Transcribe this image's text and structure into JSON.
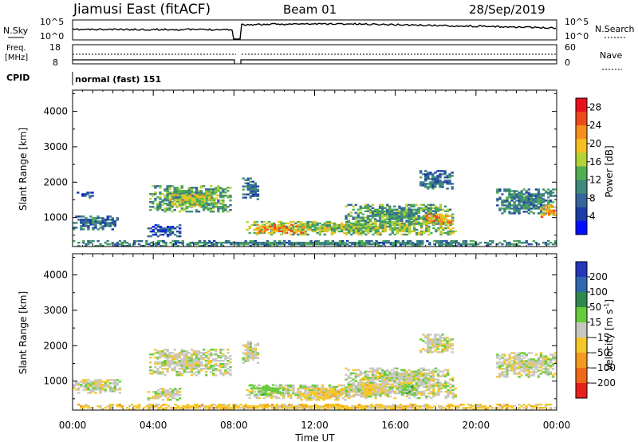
{
  "header": {
    "site": "Jiamusi East (fitACF)",
    "beam": "Beam 01",
    "date": "28/Sep/2019"
  },
  "info_panels": {
    "nsky_label": "N.Sky",
    "nsearch_label": "N.Search",
    "nsky_ticks": [
      "10^5",
      "10^0"
    ],
    "nsearch_ticks": [
      "10^5",
      "10^0"
    ],
    "freq_label_1": "Freq.",
    "freq_label_2": "[MHz]",
    "freq_ticks": [
      "18",
      "8"
    ],
    "nave_label": "Nave",
    "nave_ticks": [
      "60",
      "0"
    ],
    "cpid_label": "CPID",
    "cpid_value": "normal (fast) 151"
  },
  "chart_data": [
    {
      "type": "heatmap",
      "name": "power",
      "ylabel": "Slant Range [km]",
      "xlabel": "",
      "x_ticks": [
        "00:00",
        "04:00",
        "08:00",
        "12:00",
        "16:00",
        "20:00",
        "00:00"
      ],
      "ylim": [
        180,
        4600
      ],
      "y_ticks": [
        1000,
        2000,
        3000,
        4000
      ],
      "colorbar": {
        "label": "Power [dB]",
        "ticks": [
          4,
          8,
          12,
          16,
          20,
          24,
          28
        ],
        "range": [
          0,
          30
        ],
        "colors": [
          "#0010ff",
          "#1c3ca8",
          "#35659a",
          "#3f8a7a",
          "#4fae52",
          "#b4d138",
          "#f4c020",
          "#f78f1c",
          "#ef4a1a",
          "#e8101a"
        ]
      },
      "echo_regions": [
        {
          "t0": 0.0,
          "t1": 2.4,
          "r0": 650,
          "r1": 1050,
          "value": 8
        },
        {
          "t0": 0.2,
          "t1": 1.0,
          "r0": 1550,
          "r1": 1700,
          "value": 6
        },
        {
          "t0": 3.8,
          "t1": 7.8,
          "r0": 1150,
          "r1": 1900,
          "value": 12
        },
        {
          "t0": 4.8,
          "t1": 7.2,
          "r0": 1300,
          "r1": 1700,
          "value": 17
        },
        {
          "t0": 3.7,
          "t1": 5.3,
          "r0": 450,
          "r1": 800,
          "value": 6
        },
        {
          "t0": 8.4,
          "t1": 9.2,
          "r0": 1500,
          "r1": 2100,
          "value": 8
        },
        {
          "t0": 8.6,
          "t1": 19.0,
          "r0": 500,
          "r1": 900,
          "value": 15
        },
        {
          "t0": 9.0,
          "t1": 11.5,
          "r0": 550,
          "r1": 800,
          "value": 22
        },
        {
          "t0": 13.5,
          "t1": 18.8,
          "r0": 800,
          "r1": 1350,
          "value": 12
        },
        {
          "t0": 17.5,
          "t1": 18.8,
          "r0": 800,
          "r1": 1100,
          "value": 21
        },
        {
          "t0": 17.2,
          "t1": 18.8,
          "r0": 1800,
          "r1": 2300,
          "value": 8
        },
        {
          "t0": 21.0,
          "t1": 24.0,
          "r0": 1100,
          "r1": 1800,
          "value": 10
        },
        {
          "t0": 23.2,
          "t1": 24.0,
          "r0": 1000,
          "r1": 1350,
          "value": 20
        },
        {
          "t0": 0.0,
          "t1": 24.0,
          "r0": 180,
          "r1": 320,
          "value": 10
        }
      ]
    },
    {
      "type": "heatmap",
      "name": "velocity",
      "ylabel": "Slant Range [km]",
      "xlabel": "Time UT",
      "x_ticks": [
        "00:00",
        "04:00",
        "08:00",
        "12:00",
        "16:00",
        "20:00",
        "00:00"
      ],
      "ylim": [
        180,
        4600
      ],
      "y_ticks": [
        1000,
        2000,
        3000,
        4000
      ],
      "colorbar": {
        "label": "Velocity [m s^-1]",
        "ticks": [
          200,
          100,
          50,
          15,
          -15,
          -50,
          -100,
          -200
        ],
        "colors": [
          "#2238b8",
          "#3068b0",
          "#2e8a4c",
          "#66cc3c",
          "#c8c8c0",
          "#f5c82a",
          "#f59a20",
          "#f06818",
          "#e8201a"
        ]
      },
      "echo_regions": [
        {
          "t0": 0.0,
          "t1": 2.4,
          "r0": 650,
          "r1": 1050,
          "value": 0
        },
        {
          "t0": 3.8,
          "t1": 7.8,
          "r0": 1150,
          "r1": 1900,
          "value": 0
        },
        {
          "t0": 3.7,
          "t1": 5.3,
          "r0": 450,
          "r1": 800,
          "value": 0
        },
        {
          "t0": 8.4,
          "t1": 9.2,
          "r0": 1500,
          "r1": 2100,
          "value": 0
        },
        {
          "t0": 8.6,
          "t1": 19.0,
          "r0": 500,
          "r1": 900,
          "value": 0
        },
        {
          "t0": 8.8,
          "t1": 10.4,
          "r0": 600,
          "r1": 900,
          "value": 30
        },
        {
          "t0": 11.3,
          "t1": 13.5,
          "r0": 450,
          "r1": 800,
          "value": -30
        },
        {
          "t0": 13.5,
          "t1": 18.8,
          "r0": 800,
          "r1": 1350,
          "value": 0
        },
        {
          "t0": 14.2,
          "t1": 15.0,
          "r0": 600,
          "r1": 900,
          "value": -30
        },
        {
          "t0": 16.3,
          "t1": 17.0,
          "r0": 600,
          "r1": 900,
          "value": 30
        },
        {
          "t0": 17.2,
          "t1": 18.8,
          "r0": 1800,
          "r1": 2300,
          "value": 0
        },
        {
          "t0": 21.0,
          "t1": 24.0,
          "r0": 1100,
          "r1": 1800,
          "value": 0
        },
        {
          "t0": 0.0,
          "t1": 24.0,
          "r0": 180,
          "r1": 320,
          "value": -30
        }
      ]
    }
  ]
}
